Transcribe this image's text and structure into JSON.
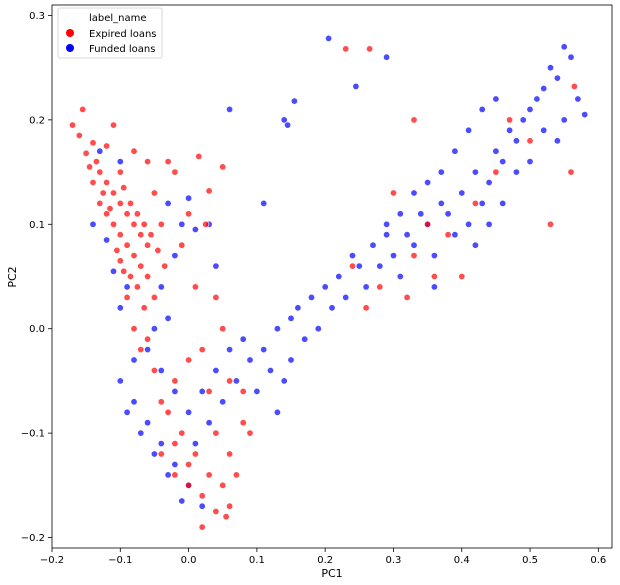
{
  "chart_data": {
    "type": "scatter",
    "title": "",
    "xlabel": "PC1",
    "ylabel": "PC2",
    "xlim": [
      -0.2,
      0.62
    ],
    "ylim": [
      -0.21,
      0.31
    ],
    "xticks": [
      -0.2,
      -0.1,
      0.0,
      0.1,
      0.2,
      0.3,
      0.4,
      0.5,
      0.6
    ],
    "yticks": [
      -0.2,
      -0.1,
      0.0,
      0.1,
      0.2,
      0.3
    ],
    "xtick_labels": [
      "−0.2",
      "−0.1",
      "0.0",
      "0.1",
      "0.2",
      "0.3",
      "0.4",
      "0.5",
      "0.6"
    ],
    "ytick_labels": [
      "−0.2",
      "−0.1",
      "0.0",
      "0.1",
      "0.2",
      "0.3"
    ],
    "grid": false,
    "legend": {
      "title": "label_name",
      "placement": "top-left"
    },
    "series": [
      {
        "name": "Expired loans",
        "color": "#ff0000",
        "points": [
          [
            -0.17,
            0.195
          ],
          [
            -0.155,
            0.21
          ],
          [
            -0.16,
            0.185
          ],
          [
            -0.14,
            0.178
          ],
          [
            -0.15,
            0.168
          ],
          [
            -0.145,
            0.155
          ],
          [
            -0.13,
            0.15
          ],
          [
            -0.12,
            0.14
          ],
          [
            -0.14,
            0.14
          ],
          [
            -0.11,
            0.13
          ],
          [
            -0.13,
            0.12
          ],
          [
            -0.12,
            0.11
          ],
          [
            -0.1,
            0.12
          ],
          [
            -0.09,
            0.11
          ],
          [
            -0.11,
            0.1
          ],
          [
            -0.1,
            0.09
          ],
          [
            -0.08,
            0.1
          ],
          [
            -0.09,
            0.08
          ],
          [
            -0.07,
            0.09
          ],
          [
            -0.08,
            0.07
          ],
          [
            -0.06,
            0.08
          ],
          [
            -0.07,
            0.06
          ],
          [
            -0.1,
            0.065
          ],
          [
            -0.085,
            0.05
          ],
          [
            -0.06,
            0.05
          ],
          [
            -0.075,
            0.04
          ],
          [
            -0.05,
            0.03
          ],
          [
            -0.065,
            0.02
          ],
          [
            -0.04,
            0.1
          ],
          [
            -0.05,
            0.13
          ],
          [
            -0.03,
            0.16
          ],
          [
            -0.02,
            0.15
          ],
          [
            -0.06,
            0.16
          ],
          [
            -0.08,
            0.17
          ],
          [
            -0.11,
            0.195
          ],
          [
            -0.12,
            0.175
          ],
          [
            -0.1,
            0.15
          ],
          [
            -0.135,
            0.16
          ],
          [
            -0.125,
            0.13
          ],
          [
            -0.115,
            0.115
          ],
          [
            -0.095,
            0.135
          ],
          [
            -0.085,
            0.12
          ],
          [
            -0.075,
            0.11
          ],
          [
            -0.065,
            0.1
          ],
          [
            -0.055,
            0.09
          ],
          [
            -0.045,
            0.075
          ],
          [
            -0.035,
            0.06
          ],
          [
            -0.09,
            0.03
          ],
          [
            -0.095,
            0.055
          ],
          [
            -0.105,
            0.075
          ],
          [
            0.015,
            0.165
          ],
          [
            0.05,
            0.155
          ],
          [
            0.03,
            0.132
          ],
          [
            0.0,
            0.11
          ],
          [
            -0.01,
            0.08
          ],
          [
            0.025,
            0.1
          ],
          [
            0.01,
            0.04
          ],
          [
            0.04,
            0.03
          ],
          [
            0.05,
            0.0
          ],
          [
            0.02,
            -0.02
          ],
          [
            0.0,
            -0.03
          ],
          [
            -0.02,
            -0.05
          ],
          [
            -0.03,
            -0.08
          ],
          [
            -0.01,
            -0.1
          ],
          [
            0.01,
            -0.12
          ],
          [
            0.03,
            -0.14
          ],
          [
            0.05,
            -0.15
          ],
          [
            0.02,
            -0.16
          ],
          [
            0.0,
            -0.13
          ],
          [
            -0.02,
            -0.11
          ],
          [
            0.04,
            -0.1
          ],
          [
            0.06,
            -0.12
          ],
          [
            0.08,
            -0.09
          ],
          [
            0.03,
            -0.06
          ],
          [
            0.06,
            -0.05
          ],
          [
            -0.04,
            -0.07
          ],
          [
            -0.05,
            -0.04
          ],
          [
            -0.07,
            -0.02
          ],
          [
            -0.06,
            -0.01
          ],
          [
            -0.08,
            0.0
          ],
          [
            0.02,
            -0.19
          ],
          [
            0.06,
            -0.17
          ],
          [
            0.04,
            -0.175
          ],
          [
            0.055,
            -0.18
          ],
          [
            0.0,
            -0.15
          ],
          [
            -0.02,
            -0.14
          ],
          [
            -0.04,
            -0.12
          ],
          [
            0.07,
            -0.14
          ],
          [
            0.09,
            -0.1
          ],
          [
            0.08,
            -0.06
          ],
          [
            0.23,
            0.268
          ],
          [
            0.265,
            0.268
          ],
          [
            0.33,
            0.2
          ],
          [
            0.28,
            0.04
          ],
          [
            0.26,
            0.02
          ],
          [
            0.3,
            0.13
          ],
          [
            0.33,
            0.07
          ],
          [
            0.36,
            0.05
          ],
          [
            0.24,
            0.06
          ],
          [
            0.45,
            0.15
          ],
          [
            0.5,
            0.18
          ],
          [
            0.53,
            0.1
          ],
          [
            0.56,
            0.15
          ],
          [
            0.565,
            0.232
          ],
          [
            0.42,
            0.12
          ],
          [
            0.38,
            0.09
          ],
          [
            0.47,
            0.2
          ],
          [
            0.35,
            0.1
          ],
          [
            0.32,
            0.03
          ],
          [
            0.4,
            0.05
          ]
        ]
      },
      {
        "name": "Funded loans",
        "color": "#0000ff",
        "points": [
          [
            -0.1,
            -0.05
          ],
          [
            -0.08,
            -0.07
          ],
          [
            -0.06,
            -0.09
          ],
          [
            -0.04,
            -0.11
          ],
          [
            -0.02,
            -0.13
          ],
          [
            0.0,
            -0.15
          ],
          [
            0.02,
            -0.17
          ],
          [
            -0.01,
            -0.165
          ],
          [
            -0.03,
            -0.14
          ],
          [
            -0.05,
            -0.12
          ],
          [
            -0.07,
            -0.1
          ],
          [
            -0.09,
            -0.08
          ],
          [
            0.01,
            -0.11
          ],
          [
            0.03,
            -0.09
          ],
          [
            0.05,
            -0.07
          ],
          [
            0.07,
            -0.05
          ],
          [
            0.09,
            -0.03
          ],
          [
            0.1,
            -0.06
          ],
          [
            0.12,
            -0.04
          ],
          [
            0.11,
            -0.02
          ],
          [
            0.08,
            -0.01
          ],
          [
            0.06,
            -0.02
          ],
          [
            0.04,
            -0.04
          ],
          [
            0.02,
            -0.06
          ],
          [
            0.0,
            -0.08
          ],
          [
            -0.02,
            -0.06
          ],
          [
            -0.04,
            -0.04
          ],
          [
            -0.06,
            -0.02
          ],
          [
            -0.08,
            -0.03
          ],
          [
            -0.05,
            0.0
          ],
          [
            -0.03,
            0.01
          ],
          [
            -0.04,
            0.04
          ],
          [
            -0.02,
            0.07
          ],
          [
            -0.01,
            0.1
          ],
          [
            -0.03,
            0.12
          ],
          [
            0.0,
            0.125
          ],
          [
            0.01,
            0.095
          ],
          [
            -0.1,
            0.16
          ],
          [
            -0.13,
            0.17
          ],
          [
            -0.14,
            0.1
          ],
          [
            -0.12,
            0.085
          ],
          [
            -0.11,
            0.055
          ],
          [
            -0.09,
            0.04
          ],
          [
            -0.1,
            0.02
          ],
          [
            0.13,
            -0.08
          ],
          [
            0.14,
            -0.05
          ],
          [
            0.15,
            -0.03
          ],
          [
            0.13,
            0.0
          ],
          [
            0.16,
            0.02
          ],
          [
            0.18,
            0.03
          ],
          [
            0.15,
            0.01
          ],
          [
            0.17,
            -0.01
          ],
          [
            0.2,
            0.04
          ],
          [
            0.22,
            0.05
          ],
          [
            0.24,
            0.07
          ],
          [
            0.21,
            0.02
          ],
          [
            0.19,
            0.0
          ],
          [
            0.23,
            0.03
          ],
          [
            0.25,
            0.06
          ],
          [
            0.27,
            0.08
          ],
          [
            0.29,
            0.09
          ],
          [
            0.26,
            0.04
          ],
          [
            0.28,
            0.06
          ],
          [
            0.3,
            0.07
          ],
          [
            0.32,
            0.09
          ],
          [
            0.34,
            0.11
          ],
          [
            0.31,
            0.05
          ],
          [
            0.33,
            0.08
          ],
          [
            0.35,
            0.1
          ],
          [
            0.37,
            0.12
          ],
          [
            0.36,
            0.07
          ],
          [
            0.38,
            0.11
          ],
          [
            0.4,
            0.13
          ],
          [
            0.42,
            0.15
          ],
          [
            0.39,
            0.09
          ],
          [
            0.41,
            0.1
          ],
          [
            0.43,
            0.12
          ],
          [
            0.45,
            0.17
          ],
          [
            0.47,
            0.19
          ],
          [
            0.44,
            0.14
          ],
          [
            0.46,
            0.16
          ],
          [
            0.48,
            0.18
          ],
          [
            0.5,
            0.21
          ],
          [
            0.52,
            0.23
          ],
          [
            0.49,
            0.2
          ],
          [
            0.51,
            0.22
          ],
          [
            0.53,
            0.25
          ],
          [
            0.55,
            0.27
          ],
          [
            0.54,
            0.24
          ],
          [
            0.56,
            0.26
          ],
          [
            0.45,
            0.22
          ],
          [
            0.43,
            0.21
          ],
          [
            0.41,
            0.19
          ],
          [
            0.39,
            0.17
          ],
          [
            0.37,
            0.15
          ],
          [
            0.35,
            0.14
          ],
          [
            0.33,
            0.13
          ],
          [
            0.31,
            0.11
          ],
          [
            0.29,
            0.1
          ],
          [
            0.5,
            0.16
          ],
          [
            0.52,
            0.19
          ],
          [
            0.48,
            0.15
          ],
          [
            0.46,
            0.12
          ],
          [
            0.44,
            0.1
          ],
          [
            0.42,
            0.08
          ],
          [
            0.55,
            0.2
          ],
          [
            0.57,
            0.22
          ],
          [
            0.58,
            0.205
          ],
          [
            0.54,
            0.18
          ],
          [
            0.36,
            0.04
          ],
          [
            0.205,
            0.278
          ],
          [
            0.245,
            0.232
          ],
          [
            0.29,
            0.26
          ],
          [
            0.14,
            0.2
          ],
          [
            0.145,
            0.195
          ],
          [
            0.155,
            0.218
          ],
          [
            0.11,
            0.12
          ],
          [
            0.06,
            0.21
          ],
          [
            0.03,
            0.1
          ],
          [
            0.04,
            0.06
          ]
        ]
      }
    ]
  }
}
